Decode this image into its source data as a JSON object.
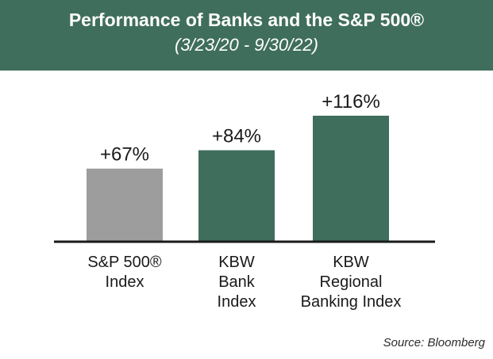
{
  "header": {
    "title": "Performance of Banks and the S&P 500®",
    "subtitle": "(3/23/20 - 9/30/22)"
  },
  "chart_data": {
    "type": "bar",
    "categories": [
      [
        "S&P 500®",
        "Index"
      ],
      [
        "KBW",
        "Bank",
        "Index"
      ],
      [
        "KBW",
        "Regional",
        "Banking Index"
      ]
    ],
    "values": [
      67,
      84,
      116
    ],
    "data_labels": [
      "+67%",
      "+84%",
      "+116%"
    ],
    "colors": [
      "#9d9d9d",
      "#3f6e5c",
      "#3f6e5c"
    ],
    "title": "Performance of Banks and the S&P 500®",
    "subtitle": "(3/23/20 - 9/30/22)",
    "ylim": [
      0,
      116
    ],
    "grid": false,
    "legend": "none"
  },
  "footer": {
    "source": "Source: Bloomberg"
  }
}
